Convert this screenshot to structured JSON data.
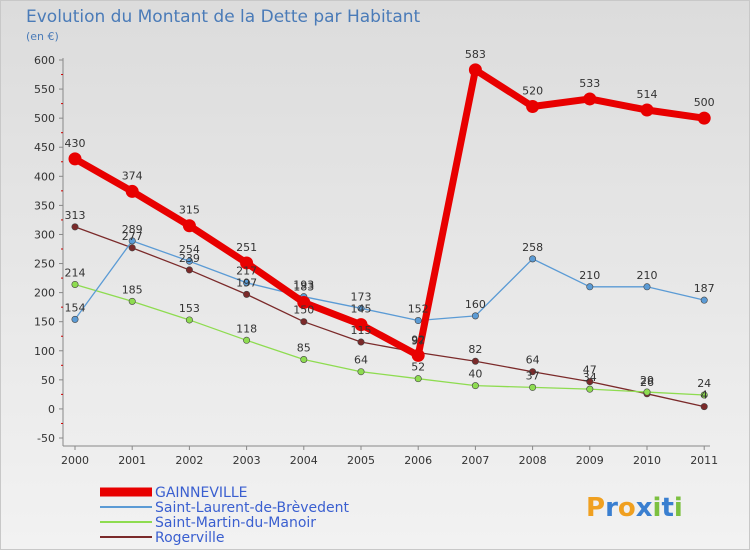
{
  "chart_data": {
    "type": "line",
    "title": "Evolution du Montant de la Dette par Habitant",
    "subtitle": "(en €)",
    "x": [
      "2000",
      "2001",
      "2002",
      "2003",
      "2004",
      "2005",
      "2006",
      "2007",
      "2008",
      "2009",
      "2010",
      "2011"
    ],
    "ylim": [
      -50,
      600
    ],
    "yticks": [
      -50,
      0,
      50,
      100,
      150,
      200,
      250,
      300,
      350,
      400,
      450,
      500,
      550,
      600
    ],
    "grid": false,
    "legend_position": "bottom-left",
    "series": [
      {
        "name": "GAINNEVILLE",
        "color": "#e80000",
        "values": [
          430,
          374,
          315,
          251,
          183,
          145,
          92,
          583,
          520,
          533,
          514,
          500
        ],
        "labels": [
          "430",
          "374",
          "315",
          "251",
          "183",
          "145",
          "92",
          "583",
          "520",
          "533",
          "514",
          "500"
        ]
      },
      {
        "name": "Saint-Laurent-de-Brèvedent",
        "color": "#5b9bd5",
        "values": [
          154,
          289,
          254,
          217,
          193,
          173,
          152,
          160,
          258,
          210,
          210,
          187
        ],
        "labels": [
          "154",
          "289",
          "254",
          "217",
          "193",
          "173",
          "152",
          "160",
          "258",
          "210",
          "210",
          "187"
        ]
      },
      {
        "name": "Saint-Martin-du-Manoir",
        "color": "#8edc50",
        "values": [
          214,
          185,
          153,
          118,
          85,
          64,
          52,
          40,
          37,
          34,
          29,
          24
        ],
        "labels": [
          "214",
          "185",
          "153",
          "118",
          "85",
          "64",
          "52",
          "40",
          "37",
          "34",
          "29",
          "24"
        ]
      },
      {
        "name": "Rogerville",
        "color": "#7b2a2a",
        "values": [
          313,
          277,
          239,
          197,
          150,
          115,
          97,
          82,
          64,
          47,
          26,
          4
        ],
        "labels": [
          "313",
          "277",
          "239",
          "197",
          "150",
          "115",
          "97",
          "82",
          "64",
          "47",
          "26",
          "4"
        ]
      }
    ]
  },
  "brand": {
    "logo_text": "Proxiti",
    "letters": [
      "P",
      "r",
      "o",
      "x",
      "i",
      "t",
      "i"
    ]
  }
}
